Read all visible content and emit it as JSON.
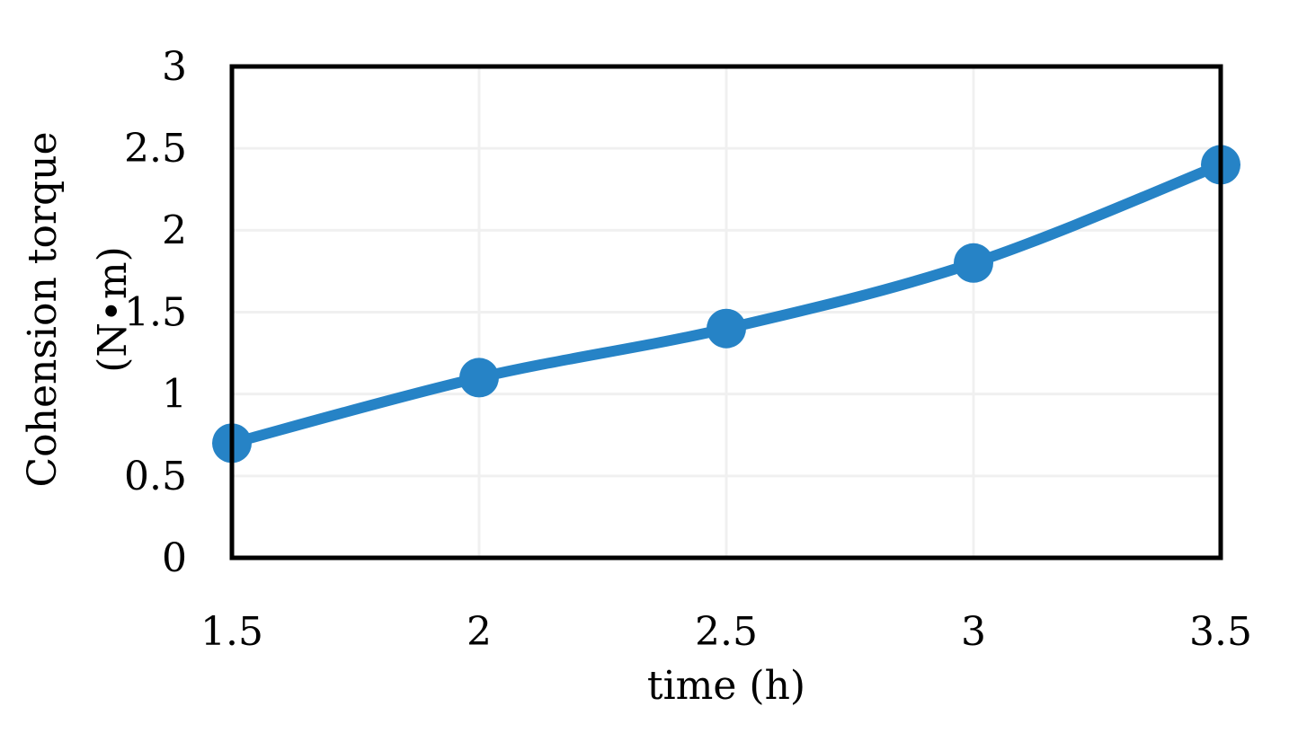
{
  "chart_data": {
    "type": "line",
    "title": "",
    "xlabel": "time (h)",
    "ylabel_line1": "Cohension torque",
    "ylabel_line2": "(N•m)",
    "xlim": [
      1.5,
      3.5
    ],
    "ylim": [
      0,
      3
    ],
    "x_ticks": [
      "1.5",
      "2",
      "2.5",
      "3",
      "3.5"
    ],
    "y_ticks": [
      "0",
      "0.5",
      "1",
      "1.5",
      "2",
      "2.5",
      "3"
    ],
    "grid": true,
    "legend": "none",
    "series": [
      {
        "x": [
          1.5,
          2,
          2.5,
          3,
          3.5
        ],
        "values": [
          0.7,
          1.1,
          1.4,
          1.8,
          2.4
        ],
        "color": "#2683c6",
        "smooth": true,
        "markers": true
      }
    ]
  }
}
